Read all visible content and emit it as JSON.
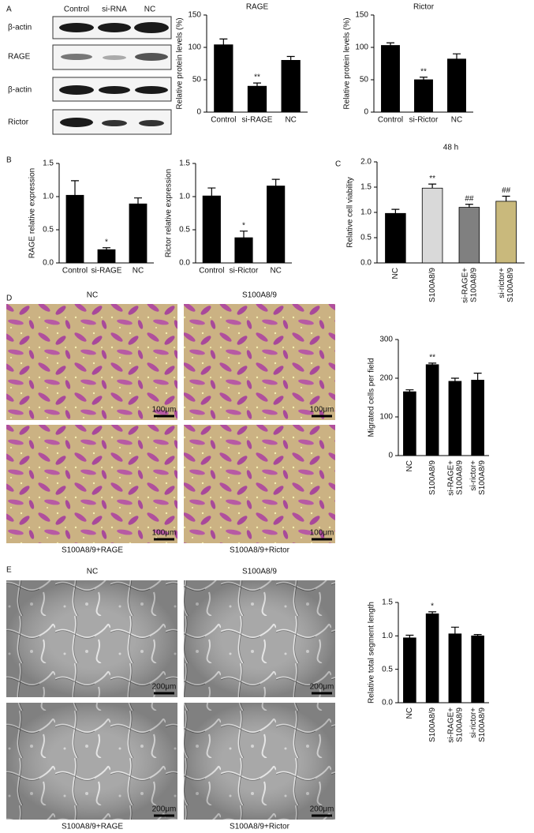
{
  "panel_labels": [
    "A",
    "B",
    "C",
    "D",
    "E"
  ],
  "blot": {
    "columns": [
      "Control",
      "si-RNA",
      "NC"
    ],
    "rows": [
      "β-actin",
      "RAGE",
      "β-actin",
      "Rictor"
    ]
  },
  "migration_images": {
    "labels": [
      "NC",
      "S100A8/9",
      "S100A8/9+RAGE",
      "S100A8/9+Rictor"
    ],
    "scale_bar": "100μm"
  },
  "tube_images": {
    "labels": [
      "NC",
      "S100A8/9",
      "S100A8/9+RAGE",
      "S100A8/9+Rictor"
    ],
    "scale_bar": "200μm"
  },
  "chart_data": [
    {
      "type": "bar",
      "title": "RAGE",
      "y_label": "Relative protein levels (%)",
      "categories": [
        "Control",
        "si-RAGE",
        "NC"
      ],
      "values": [
        104,
        40,
        80
      ],
      "errors": [
        9,
        5,
        6
      ],
      "annotations": [
        null,
        "**",
        null
      ],
      "color": "#000000",
      "ylim": [
        0,
        150
      ],
      "yticks": [
        0,
        50,
        100,
        150
      ]
    },
    {
      "type": "bar",
      "title": "Rictor",
      "y_label": "Relative protein levels (%)",
      "categories": [
        "Control",
        "si-Rictor",
        "NC"
      ],
      "values": [
        103,
        50,
        82
      ],
      "errors": [
        4,
        4,
        8
      ],
      "annotations": [
        null,
        "**",
        null
      ],
      "color": "#000000",
      "ylim": [
        0,
        150
      ],
      "yticks": [
        0,
        50,
        100,
        150
      ]
    },
    {
      "type": "bar",
      "y_label": "RAGE relative expression",
      "categories": [
        "Control",
        "si-RAGE",
        "NC"
      ],
      "values": [
        1.02,
        0.2,
        0.89
      ],
      "errors": [
        0.22,
        0.03,
        0.09
      ],
      "annotations": [
        null,
        "*",
        null
      ],
      "color": "#000000",
      "ylim": [
        0,
        1.5
      ],
      "yticks": [
        {
          "value": 0,
          "label": "0.0"
        },
        0.5,
        {
          "value": 1,
          "label": "1.0"
        },
        1.5
      ]
    },
    {
      "type": "bar",
      "y_label": "Rictor relative expression",
      "categories": [
        "Control",
        "si-Rictor",
        "NC"
      ],
      "values": [
        1.01,
        0.38,
        1.16
      ],
      "errors": [
        0.12,
        0.1,
        0.1
      ],
      "annotations": [
        null,
        "*",
        null
      ],
      "color": "#000000",
      "ylim": [
        0,
        1.5
      ],
      "yticks": [
        {
          "value": 0,
          "label": "0.0"
        },
        0.5,
        {
          "value": 1,
          "label": "1.0"
        },
        1.5
      ]
    },
    {
      "type": "bar",
      "title": "48 h",
      "y_label": "Relative cell viability",
      "categories": [
        "NC",
        "S100A8/9",
        "si-RAGE+\nS100A8/9",
        "si-rictor+\nS100A8/9"
      ],
      "values": [
        0.98,
        1.48,
        1.1,
        1.22
      ],
      "errors": [
        0.08,
        0.08,
        0.06,
        0.1
      ],
      "annotations": [
        null,
        "**",
        "##",
        "##"
      ],
      "colors": [
        "#000000",
        "#d9d9d9",
        "#808080",
        "#c9b97c"
      ],
      "ylim": [
        0,
        2
      ],
      "yticks": [
        {
          "value": 0,
          "label": "0.0"
        },
        0.5,
        {
          "value": 1,
          "label": "1.0"
        },
        1.5,
        {
          "value": 2,
          "label": "2.0"
        }
      ],
      "x_label_rotation": 90
    },
    {
      "type": "bar",
      "y_label": "Migrated cells per field",
      "categories": [
        "NC",
        "S100A8/9",
        "si-RAGE+\nS100A8/9",
        "si-rictor+\nS100A8/9"
      ],
      "values": [
        165,
        235,
        192,
        195
      ],
      "errors": [
        5,
        4,
        8,
        18
      ],
      "annotations": [
        null,
        "**",
        null,
        null
      ],
      "color": "#000000",
      "ylim": [
        0,
        300
      ],
      "yticks": [
        0,
        100,
        200,
        300
      ],
      "x_label_rotation": 90
    },
    {
      "type": "bar",
      "y_label": "Relative total segment length",
      "categories": [
        "NC",
        "S100A8/9",
        "si-RAGE+\nS100A8/9",
        "si-rictor+\nS100A8/9"
      ],
      "values": [
        0.97,
        1.33,
        1.03,
        1.0
      ],
      "errors": [
        0.04,
        0.03,
        0.1,
        0.02
      ],
      "annotations": [
        null,
        "*",
        null,
        null
      ],
      "color": "#000000",
      "ylim": [
        0,
        1.5
      ],
      "yticks": [
        {
          "value": 0,
          "label": "0.0"
        },
        0.5,
        {
          "value": 1,
          "label": "1.0"
        },
        1.5
      ],
      "x_label_rotation": 90
    }
  ]
}
